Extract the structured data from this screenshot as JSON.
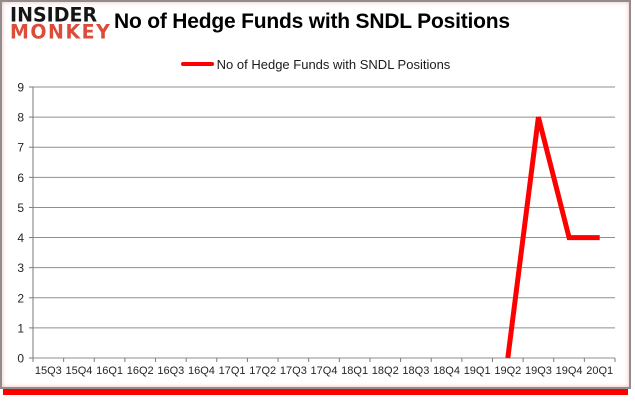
{
  "header": {
    "logo_line1": "INSIDER",
    "logo_line2": "MONKEY",
    "title": "No of Hedge Funds with SNDL Positions"
  },
  "legend": {
    "label": "No of Hedge Funds with SNDL Positions"
  },
  "colors": {
    "brand_red": "#dd4b39",
    "series_red": "#ff0000",
    "gridline_gray": "#8f8f8f",
    "axis_gray": "#7a7a7a"
  },
  "chart_data": {
    "type": "line",
    "title": "No of Hedge Funds with SNDL Positions",
    "categories": [
      "15Q3",
      "15Q4",
      "16Q1",
      "16Q2",
      "16Q3",
      "16Q4",
      "17Q1",
      "17Q2",
      "17Q3",
      "17Q4",
      "18Q1",
      "18Q2",
      "18Q3",
      "18Q4",
      "19Q1",
      "19Q2",
      "19Q3",
      "19Q4",
      "20Q1"
    ],
    "series": [
      {
        "name": "No of Hedge Funds with SNDL Positions",
        "values": [
          null,
          null,
          null,
          null,
          null,
          null,
          null,
          null,
          null,
          null,
          null,
          null,
          null,
          null,
          null,
          0,
          8,
          4,
          4
        ]
      }
    ],
    "ylim": [
      0,
      9
    ],
    "y_ticks": [
      0,
      1,
      2,
      3,
      4,
      5,
      6,
      7,
      8,
      9
    ],
    "grid": true,
    "legend_position": "top-center",
    "line_width": 5
  }
}
